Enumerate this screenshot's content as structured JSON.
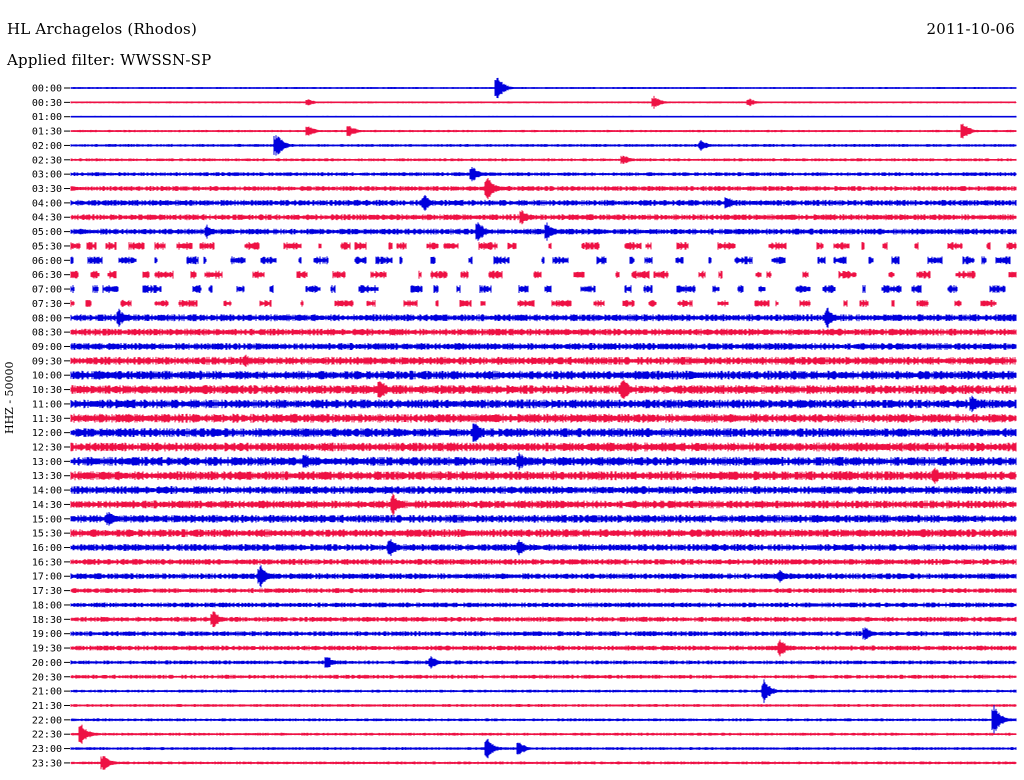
{
  "header": {
    "station": "HL Archagelos (Rhodos)",
    "date": "2011-10-06",
    "filter": "Applied filter: WWSSN-SP"
  },
  "axis": {
    "y_label": "HHZ - 50000"
  },
  "colors": {
    "even_trace": "#0000dd",
    "odd_trace": "#ee1144",
    "background": "#ffffff"
  },
  "chart_data": {
    "type": "line",
    "title": "",
    "xlabel": "",
    "ylabel": "HHZ - 50000",
    "row_labels": [
      "00:00",
      "00:30",
      "01:00",
      "01:30",
      "02:00",
      "02:30",
      "03:00",
      "03:30",
      "04:00",
      "04:30",
      "05:00",
      "05:30",
      "06:00",
      "06:30",
      "07:00",
      "07:30",
      "08:00",
      "08:30",
      "09:00",
      "09:30",
      "10:00",
      "10:30",
      "11:00",
      "11:30",
      "12:00",
      "12:30",
      "13:00",
      "13:30",
      "14:00",
      "14:30",
      "15:00",
      "15:30",
      "16:00",
      "16:30",
      "17:00",
      "17:30",
      "18:00",
      "18:30",
      "19:00",
      "19:30",
      "20:00",
      "20:30",
      "21:00",
      "21:30",
      "22:00",
      "22:30",
      "23:00",
      "23:30"
    ],
    "row_duration_minutes": 30,
    "row_colors": [
      "blue",
      "red"
    ],
    "noise_level": [
      1,
      1,
      0.8,
      1.2,
      1.5,
      1.5,
      2,
      2.5,
      3,
      3,
      3,
      4,
      4,
      4,
      4,
      3.5,
      3.5,
      3.5,
      3.5,
      4,
      4.5,
      4.5,
      4.5,
      4.5,
      4.5,
      4.5,
      4.5,
      4.5,
      4,
      4,
      4,
      4,
      3.5,
      3,
      3,
      2.5,
      2.5,
      2.5,
      2.5,
      2.5,
      2,
      2,
      1.5,
      1.5,
      1.5,
      1.5,
      1.5,
      1.5
    ],
    "gapped_rows": [
      "05:30",
      "06:00",
      "06:30",
      "07:00",
      "07:30"
    ],
    "events": [
      {
        "row": "00:00",
        "minute": 13.5,
        "amplitude": 14
      },
      {
        "row": "00:30",
        "minute": 7.5,
        "amplitude": 4
      },
      {
        "row": "00:30",
        "minute": 18.5,
        "amplitude": 7
      },
      {
        "row": "00:30",
        "minute": 21.5,
        "amplitude": 5
      },
      {
        "row": "01:30",
        "minute": 7.5,
        "amplitude": 7
      },
      {
        "row": "01:30",
        "minute": 8.8,
        "amplitude": 7
      },
      {
        "row": "01:30",
        "minute": 28.3,
        "amplitude": 10
      },
      {
        "row": "02:00",
        "minute": 6.5,
        "amplitude": 14
      },
      {
        "row": "02:00",
        "minute": 20,
        "amplitude": 6
      },
      {
        "row": "02:30",
        "minute": 17.5,
        "amplitude": 6
      },
      {
        "row": "03:00",
        "minute": 12.7,
        "amplitude": 10
      },
      {
        "row": "03:30",
        "minute": 13.2,
        "amplitude": 14
      },
      {
        "row": "04:00",
        "minute": 11.2,
        "amplitude": 10
      },
      {
        "row": "04:00",
        "minute": 20.8,
        "amplitude": 8
      },
      {
        "row": "04:30",
        "minute": 14.3,
        "amplitude": 9
      },
      {
        "row": "05:00",
        "minute": 4.3,
        "amplitude": 8
      },
      {
        "row": "05:00",
        "minute": 12.9,
        "amplitude": 12
      },
      {
        "row": "05:00",
        "minute": 15.1,
        "amplitude": 10
      },
      {
        "row": "08:00",
        "minute": 1.5,
        "amplitude": 10
      },
      {
        "row": "08:00",
        "minute": 24,
        "amplitude": 12
      },
      {
        "row": "09:30",
        "minute": 5.5,
        "amplitude": 8
      },
      {
        "row": "10:30",
        "minute": 17.5,
        "amplitude": 14
      },
      {
        "row": "10:30",
        "minute": 9.8,
        "amplitude": 12
      },
      {
        "row": "11:00",
        "minute": 28.6,
        "amplitude": 10
      },
      {
        "row": "12:00",
        "minute": 12.8,
        "amplitude": 14
      },
      {
        "row": "13:00",
        "minute": 7.4,
        "amplitude": 10
      },
      {
        "row": "13:00",
        "minute": 14.2,
        "amplitude": 12
      },
      {
        "row": "13:30",
        "minute": 27.4,
        "amplitude": 10
      },
      {
        "row": "14:30",
        "minute": 10.2,
        "amplitude": 12
      },
      {
        "row": "15:00",
        "minute": 1.2,
        "amplitude": 10
      },
      {
        "row": "16:00",
        "minute": 10.1,
        "amplitude": 12
      },
      {
        "row": "16:00",
        "minute": 14.2,
        "amplitude": 10
      },
      {
        "row": "17:00",
        "minute": 6,
        "amplitude": 14
      },
      {
        "row": "17:00",
        "minute": 22.5,
        "amplitude": 8
      },
      {
        "row": "18:30",
        "minute": 4.5,
        "amplitude": 10
      },
      {
        "row": "19:00",
        "minute": 25.2,
        "amplitude": 8
      },
      {
        "row": "19:30",
        "minute": 22.5,
        "amplitude": 10
      },
      {
        "row": "20:00",
        "minute": 8.1,
        "amplitude": 8
      },
      {
        "row": "20:00",
        "minute": 11.4,
        "amplitude": 8
      },
      {
        "row": "21:00",
        "minute": 22,
        "amplitude": 12
      },
      {
        "row": "22:00",
        "minute": 29.3,
        "amplitude": 16
      },
      {
        "row": "22:30",
        "minute": 0.3,
        "amplitude": 12
      },
      {
        "row": "23:00",
        "minute": 13.2,
        "amplitude": 12
      },
      {
        "row": "23:00",
        "minute": 14.2,
        "amplitude": 9
      },
      {
        "row": "23:30",
        "minute": 1,
        "amplitude": 10
      }
    ]
  }
}
